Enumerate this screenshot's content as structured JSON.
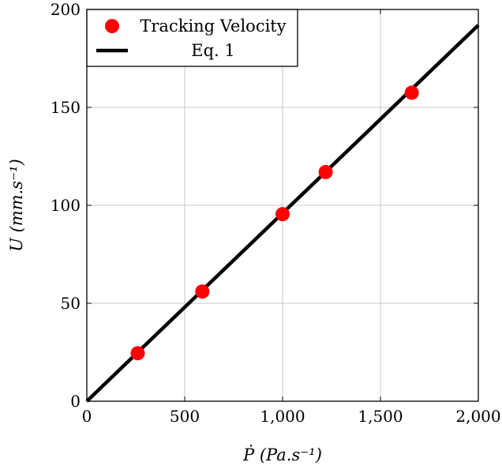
{
  "chart_data": {
    "type": "scatter",
    "title": "",
    "xlabel": "Ṗ (Pa.s⁻¹)",
    "ylabel": "U (mm.s⁻¹)",
    "xlim": [
      0,
      2000
    ],
    "ylim": [
      0,
      200
    ],
    "xticks": [
      0,
      500,
      1000,
      1500,
      2000
    ],
    "xtick_labels": [
      "0",
      "500",
      "1,000",
      "1,500",
      "2,000"
    ],
    "yticks": [
      0,
      50,
      100,
      150,
      200
    ],
    "ytick_labels": [
      "0",
      "50",
      "100",
      "150",
      "200"
    ],
    "grid": true,
    "legend_position": "top-left",
    "series": [
      {
        "name": "Tracking Velocity",
        "kind": "markers",
        "color": "#ff0000",
        "x": [
          260,
          590,
          1000,
          1220,
          1660
        ],
        "y": [
          24.5,
          56,
          95.5,
          117,
          157.5
        ]
      },
      {
        "name": "Eq. 1",
        "kind": "line",
        "color": "#000000",
        "x": [
          0,
          2000
        ],
        "y": [
          0,
          192
        ]
      }
    ]
  }
}
